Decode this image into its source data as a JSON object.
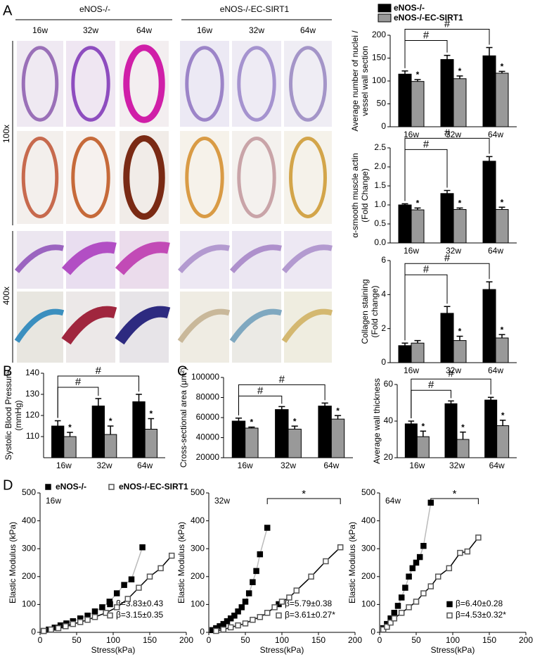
{
  "panels": [
    "A",
    "B",
    "C",
    "D"
  ],
  "histology": {
    "groups": [
      "eNOS-/-",
      "eNOS-/-EC-SIRT1"
    ],
    "timepoints": [
      "16w",
      "32w",
      "64w",
      "16w",
      "32w",
      "64w"
    ],
    "magnifications": [
      "100x",
      "400x"
    ]
  },
  "chart_data": [
    {
      "type": "bar",
      "legend": true,
      "ylabel": [
        "Average number of nuclei /",
        "vessel wall section"
      ],
      "categories": [
        "16w",
        "32w",
        "64w"
      ],
      "ylim": [
        0,
        200
      ],
      "yticks": [
        0,
        50,
        100,
        150,
        200
      ],
      "series": [
        {
          "name": "eNOS-/-",
          "color": "#000000",
          "values": [
            115,
            147,
            155
          ],
          "errors": [
            7,
            9,
            18
          ]
        },
        {
          "name": "eNOS-/-EC-SIRT1",
          "color": "#999999",
          "values": [
            99,
            105,
            117
          ],
          "errors": [
            4,
            6,
            4
          ],
          "markers": [
            "*",
            "*",
            "*"
          ]
        }
      ],
      "brackets": [
        {
          "from": "16w",
          "to": "32w",
          "label": "#"
        },
        {
          "from": "16w",
          "to": "64w",
          "label": "#"
        }
      ]
    },
    {
      "type": "bar",
      "ylabel": [
        "α-smooth muscle actin",
        "(Fold Change)"
      ],
      "categories": [
        "16w",
        "32w",
        "64w"
      ],
      "ylim": [
        0,
        2.5
      ],
      "yticks": [
        {
          "value": 0,
          "label": "0.0"
        },
        0.5,
        {
          "value": 1,
          "label": "1.0"
        },
        1.5,
        {
          "value": 2,
          "label": "2.0"
        },
        2.5
      ],
      "series": [
        {
          "name": "eNOS-/-",
          "color": "#000000",
          "values": [
            1.0,
            1.3,
            2.15
          ],
          "errors": [
            0.03,
            0.08,
            0.12
          ]
        },
        {
          "name": "eNOS-/-EC-SIRT1",
          "color": "#999999",
          "values": [
            0.87,
            0.88,
            0.88
          ],
          "errors": [
            0.05,
            0.04,
            0.06
          ],
          "markers": [
            "*",
            "*",
            "*"
          ]
        }
      ],
      "brackets": [
        {
          "from": "16w",
          "to": "32w",
          "label": "#"
        },
        {
          "from": "16w",
          "to": "64w",
          "label": "#"
        }
      ]
    },
    {
      "type": "bar",
      "ylabel": [
        "Collagen staining",
        "(Fold change)"
      ],
      "categories": [
        "16w",
        "32w",
        "64w"
      ],
      "ylim": [
        0,
        6
      ],
      "yticks": [
        0,
        2,
        4,
        6
      ],
      "series": [
        {
          "name": "eNOS-/-",
          "color": "#000000",
          "values": [
            1.0,
            2.9,
            4.3
          ],
          "errors": [
            0.15,
            0.4,
            0.45
          ]
        },
        {
          "name": "eNOS-/-EC-SIRT1",
          "color": "#999999",
          "values": [
            1.15,
            1.3,
            1.45
          ],
          "errors": [
            0.15,
            0.25,
            0.2
          ],
          "markers": [
            "*",
            "*"
          ]
        }
      ],
      "brackets": [
        {
          "from": "16w",
          "to": "32w",
          "label": "#"
        },
        {
          "from": "16w",
          "to": "64w",
          "label": "#"
        }
      ]
    },
    {
      "type": "bar",
      "ylabel": [
        "Systolic Blood Pressure",
        "(mmHg)"
      ],
      "categories": [
        "16w",
        "32w",
        "64w"
      ],
      "ylim": [
        100,
        140
      ],
      "yticks": [
        110,
        120,
        130,
        140
      ],
      "series": [
        {
          "name": "eNOS-/-",
          "color": "#000000",
          "values": [
            115,
            124.5,
            126.5
          ],
          "errors": [
            2.5,
            3.5,
            3.5
          ]
        },
        {
          "name": "eNOS-/-EC-SIRT1",
          "color": "#999999",
          "values": [
            110,
            111,
            113.5
          ],
          "errors": [
            2,
            4,
            5
          ],
          "markers": [
            "*",
            "*",
            "*"
          ]
        }
      ],
      "brackets": [
        {
          "from": "16w",
          "to": "32w",
          "label": "#"
        },
        {
          "from": "16w",
          "to": "64w",
          "label": "#"
        }
      ]
    },
    {
      "type": "bar",
      "ylabel": [
        "Cross-sectional area (μm²)"
      ],
      "categories": [
        "16w",
        "32w",
        "64w"
      ],
      "ylim": [
        20000,
        100000
      ],
      "yticks": [
        20000,
        40000,
        60000,
        80000,
        100000
      ],
      "series": [
        {
          "name": "eNOS-/-",
          "color": "#000000",
          "values": [
            56500,
            68000,
            71500
          ],
          "errors": [
            3000,
            3000,
            3000
          ]
        },
        {
          "name": "eNOS-/-EC-SIRT1",
          "color": "#999999",
          "values": [
            49500,
            48500,
            58500
          ],
          "errors": [
            1000,
            3000,
            3500
          ],
          "markers": [
            "*",
            "*",
            "*"
          ]
        }
      ],
      "brackets": [
        {
          "from": "16w",
          "to": "32w",
          "label": "#"
        },
        {
          "from": "16w",
          "to": "64w",
          "label": "#"
        }
      ]
    },
    {
      "type": "bar",
      "ylabel": [
        "Average wall thickness"
      ],
      "categories": [
        "16w",
        "32w",
        "64w"
      ],
      "ylim": [
        20,
        60
      ],
      "yticks": [
        20,
        40,
        60
      ],
      "series": [
        {
          "name": "eNOS-/-",
          "color": "#000000",
          "values": [
            38.5,
            49.5,
            51.5
          ],
          "errors": [
            1.5,
            1.5,
            1.5
          ]
        },
        {
          "name": "eNOS-/-EC-SIRT1",
          "color": "#999999",
          "values": [
            31.5,
            30,
            37.5
          ],
          "errors": [
            3,
            4,
            3
          ],
          "markers": [
            "*",
            "*",
            "*"
          ]
        }
      ],
      "brackets": [
        {
          "from": "16w",
          "to": "32w",
          "label": "#"
        },
        {
          "from": "16w",
          "to": "64w",
          "label": "#"
        }
      ]
    },
    {
      "type": "line",
      "legend": true,
      "title": "16w",
      "xlabel": "Stress(kPa)",
      "ylabel": "Elastic Modulus (kPa)",
      "xlim": [
        0,
        200
      ],
      "xticks": [
        0,
        50,
        100,
        150,
        200
      ],
      "ylim": [
        0,
        500
      ],
      "yticks": [
        0,
        100,
        200,
        300,
        400,
        500
      ],
      "series": [
        {
          "name": "eNOS-/-",
          "color": "#000000",
          "line_color": "#bbbbbb",
          "marker": "square-filled",
          "label": "β=3.83±0.43",
          "x": [
            5,
            12,
            20,
            28,
            36,
            45,
            55,
            65,
            75,
            85,
            95,
            105,
            115,
            125,
            140
          ],
          "y": [
            5,
            10,
            17,
            25,
            32,
            40,
            50,
            60,
            75,
            90,
            110,
            140,
            170,
            190,
            305
          ]
        },
        {
          "name": "eNOS-/-EC-SIRT1",
          "color": "#555555",
          "line_color": "#000000",
          "marker": "square-open",
          "label": "β=3.15±0.35",
          "x": [
            5,
            15,
            25,
            35,
            45,
            55,
            65,
            75,
            90,
            105,
            120,
            135,
            150,
            165,
            180
          ],
          "y": [
            5,
            10,
            15,
            22,
            30,
            37,
            45,
            55,
            70,
            90,
            120,
            160,
            200,
            230,
            275
          ]
        }
      ]
    },
    {
      "type": "line",
      "title": "32w",
      "xlabel": "Stress(kPa)",
      "ylabel": "Elastic Modulus (kPa)",
      "bracket_label": "*",
      "xlim": [
        0,
        200
      ],
      "xticks": [
        0,
        50,
        100,
        150,
        200
      ],
      "ylim": [
        0,
        500
      ],
      "yticks": [
        0,
        100,
        200,
        300,
        400,
        500
      ],
      "series": [
        {
          "name": "eNOS-/-",
          "color": "#000000",
          "line_color": "#bbbbbb",
          "marker": "square-filled",
          "label": "β=5.79±0.38",
          "x": [
            5,
            10,
            15,
            20,
            25,
            30,
            35,
            40,
            45,
            50,
            55,
            60,
            65,
            70,
            80
          ],
          "y": [
            8,
            15,
            22,
            30,
            40,
            50,
            60,
            75,
            90,
            110,
            140,
            180,
            220,
            280,
            375
          ]
        },
        {
          "name": "eNOS-/-EC-SIRT1",
          "color": "#555555",
          "line_color": "#000000",
          "marker": "square-open",
          "label": "β=3.61±0.27*",
          "x": [
            10,
            20,
            30,
            40,
            50,
            60,
            70,
            80,
            90,
            100,
            110,
            120,
            140,
            160,
            180
          ],
          "y": [
            5,
            10,
            18,
            25,
            32,
            45,
            55,
            70,
            90,
            110,
            125,
            150,
            200,
            255,
            305
          ]
        }
      ]
    },
    {
      "type": "line",
      "title": "64w",
      "xlabel": "Stress(kPa)",
      "ylabel": "Elastic Modulus (kPa)",
      "bracket_label": "*",
      "xlim": [
        0,
        200
      ],
      "xticks": [
        0,
        50,
        100,
        150,
        200
      ],
      "ylim": [
        0,
        500
      ],
      "yticks": [
        0,
        100,
        200,
        300,
        400,
        500
      ],
      "series": [
        {
          "name": "eNOS-/-",
          "color": "#000000",
          "line_color": "#bbbbbb",
          "marker": "square-filled",
          "label": "β=6.40±0.28",
          "x": [
            5,
            10,
            15,
            20,
            25,
            30,
            35,
            40,
            45,
            50,
            55,
            60,
            70
          ],
          "y": [
            15,
            30,
            50,
            70,
            95,
            125,
            160,
            200,
            230,
            250,
            270,
            310,
            465
          ]
        },
        {
          "name": "eNOS-/-EC-SIRT1",
          "color": "#555555",
          "line_color": "#000000",
          "marker": "square-open",
          "label": "β=4.53±0.32*",
          "x": [
            5,
            10,
            15,
            20,
            30,
            40,
            50,
            60,
            70,
            80,
            95,
            110,
            120,
            135
          ],
          "y": [
            10,
            20,
            35,
            50,
            70,
            90,
            110,
            140,
            165,
            200,
            230,
            285,
            290,
            340
          ]
        }
      ]
    }
  ]
}
